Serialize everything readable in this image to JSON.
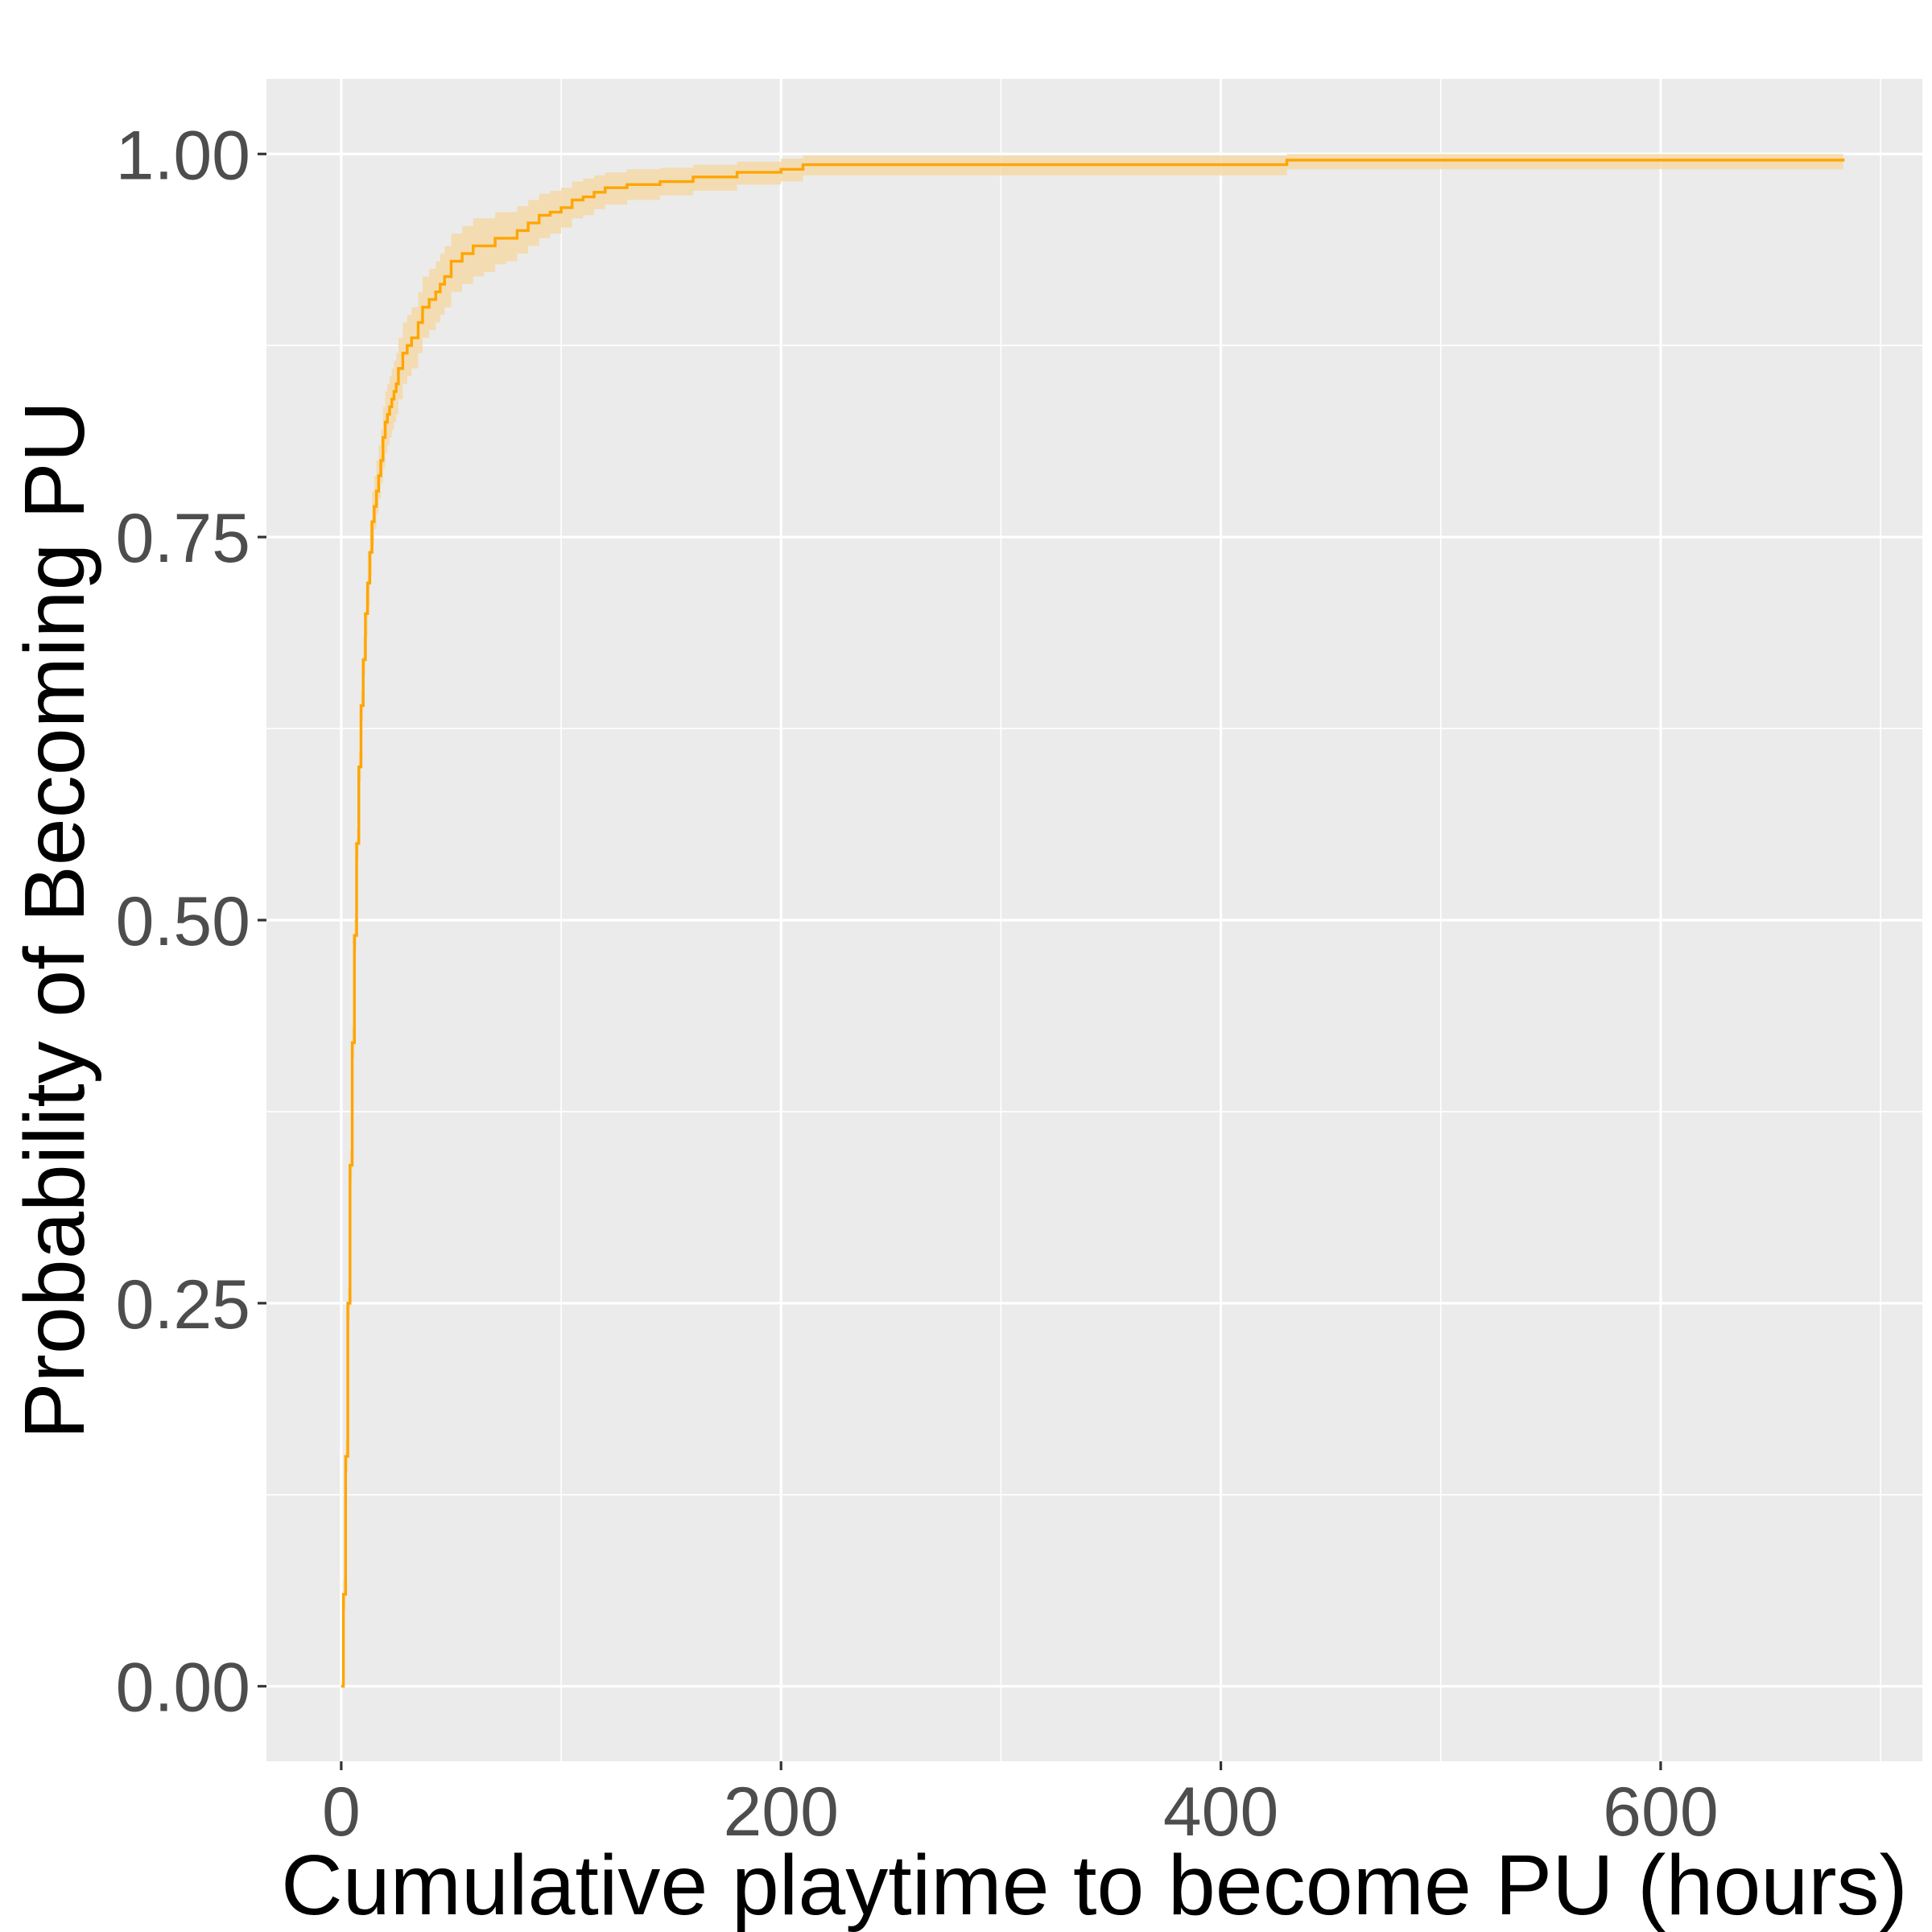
{
  "chart_data": {
    "type": "line",
    "style": "step-with-confidence-band",
    "title": "",
    "xlabel": "Cumulative playtime to become PU (hours)",
    "ylabel": "Probability of Becoming PU",
    "xlim": [
      -34,
      719
    ],
    "ylim": [
      -0.049,
      1.049
    ],
    "x_ticks": [
      0,
      200,
      400,
      600
    ],
    "x_tick_labels": [
      "0",
      "200",
      "400",
      "600"
    ],
    "x_minor_gridlines": [
      100,
      300,
      500,
      700
    ],
    "y_ticks": [
      0,
      0.25,
      0.5,
      0.75,
      1.0
    ],
    "y_tick_labels": [
      "0.00",
      "0.25",
      "0.50",
      "0.75",
      "1.00"
    ],
    "y_minor_gridlines": [
      0.125,
      0.375,
      0.625,
      0.875
    ],
    "grid": true,
    "legend": "none",
    "colors": {
      "line": "#FFA500",
      "band": "#F5D9A8",
      "panel_background": "#EBEBEB",
      "gridline": "#FFFFFF",
      "tick": "#333333"
    },
    "series": [
      {
        "x": [
          0,
          1,
          2,
          3,
          4,
          5,
          6,
          7,
          8,
          9,
          10,
          11,
          12,
          13,
          14,
          15,
          16,
          17,
          18,
          19,
          20,
          21,
          22,
          23,
          24,
          25,
          26,
          28,
          30,
          32,
          35,
          37,
          40,
          43,
          45,
          47,
          50,
          55,
          58,
          60,
          65,
          70,
          75,
          80,
          85,
          90,
          95,
          100,
          105,
          110,
          115,
          120,
          130,
          145,
          160,
          180,
          200,
          210,
          300,
          400,
          430,
          500,
          600,
          683
        ],
        "y": [
          0.0,
          0.06,
          0.15,
          0.25,
          0.34,
          0.42,
          0.49,
          0.55,
          0.6,
          0.64,
          0.67,
          0.7,
          0.72,
          0.74,
          0.76,
          0.77,
          0.78,
          0.79,
          0.8,
          0.815,
          0.825,
          0.83,
          0.835,
          0.84,
          0.845,
          0.85,
          0.86,
          0.87,
          0.875,
          0.88,
          0.89,
          0.9,
          0.905,
          0.91,
          0.915,
          0.92,
          0.93,
          0.935,
          0.935,
          0.94,
          0.94,
          0.945,
          0.945,
          0.95,
          0.955,
          0.96,
          0.962,
          0.965,
          0.97,
          0.972,
          0.975,
          0.978,
          0.98,
          0.982,
          0.985,
          0.988,
          0.99,
          0.993,
          0.993,
          0.993,
          0.996,
          0.996,
          0.996,
          0.997
        ],
        "ci_lower": [
          0.0,
          0.05,
          0.14,
          0.24,
          0.33,
          0.41,
          0.48,
          0.54,
          0.59,
          0.63,
          0.66,
          0.685,
          0.705,
          0.725,
          0.745,
          0.755,
          0.765,
          0.775,
          0.785,
          0.795,
          0.805,
          0.81,
          0.815,
          0.82,
          0.825,
          0.83,
          0.84,
          0.85,
          0.855,
          0.86,
          0.87,
          0.88,
          0.885,
          0.89,
          0.895,
          0.9,
          0.91,
          0.915,
          0.915,
          0.92,
          0.923,
          0.928,
          0.93,
          0.935,
          0.94,
          0.945,
          0.948,
          0.952,
          0.958,
          0.96,
          0.964,
          0.967,
          0.97,
          0.973,
          0.976,
          0.98,
          0.982,
          0.986,
          0.986,
          0.986,
          0.99,
          0.99,
          0.99,
          0.991
        ],
        "ci_upper": [
          0.0,
          0.07,
          0.16,
          0.26,
          0.35,
          0.43,
          0.5,
          0.56,
          0.61,
          0.65,
          0.685,
          0.715,
          0.74,
          0.76,
          0.78,
          0.79,
          0.8,
          0.81,
          0.82,
          0.835,
          0.845,
          0.85,
          0.855,
          0.86,
          0.865,
          0.87,
          0.88,
          0.89,
          0.895,
          0.9,
          0.91,
          0.92,
          0.925,
          0.93,
          0.935,
          0.94,
          0.948,
          0.953,
          0.953,
          0.958,
          0.958,
          0.962,
          0.962,
          0.966,
          0.97,
          0.974,
          0.976,
          0.978,
          0.982,
          0.984,
          0.986,
          0.988,
          0.99,
          0.991,
          0.993,
          0.995,
          0.997,
          0.999,
          0.999,
          0.999,
          1.0,
          1.0,
          1.0,
          1.0
        ]
      }
    ]
  }
}
